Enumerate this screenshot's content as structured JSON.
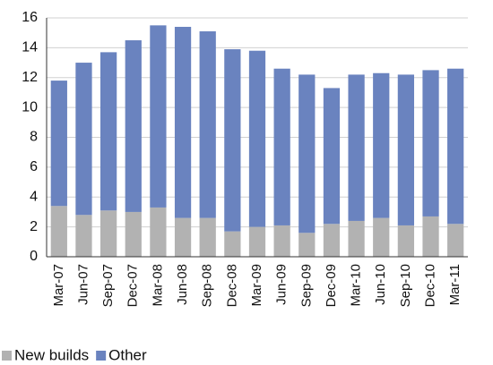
{
  "chart_data": {
    "type": "stacked_bar",
    "categories": [
      "Mar-07",
      "Jun-07",
      "Sep-07",
      "Dec-07",
      "Mar-08",
      "Jun-08",
      "Sep-08",
      "Dec-08",
      "Mar-09",
      "Jun-09",
      "Sep-09",
      "Dec-09",
      "Mar-10",
      "Jun-10",
      "Sep-10",
      "Dec-10",
      "Mar-11"
    ],
    "series": [
      {
        "name": "New builds",
        "color": "#b2b2b2",
        "values": [
          3.4,
          2.8,
          3.1,
          3.0,
          3.3,
          2.6,
          2.6,
          1.7,
          2.0,
          2.1,
          1.6,
          2.2,
          2.4,
          2.6,
          2.1,
          2.7,
          2.2
        ]
      },
      {
        "name": "Other",
        "color": "#6a83bf",
        "values": [
          8.4,
          10.2,
          10.6,
          11.5,
          12.2,
          12.8,
          12.5,
          12.2,
          11.8,
          10.5,
          10.6,
          9.1,
          9.8,
          9.7,
          10.1,
          9.8,
          10.4
        ]
      }
    ],
    "ylim": [
      0,
      16
    ],
    "yticks": [
      0,
      2,
      4,
      6,
      8,
      10,
      12,
      14,
      16
    ],
    "grid": true,
    "legend": "bottom-left"
  }
}
